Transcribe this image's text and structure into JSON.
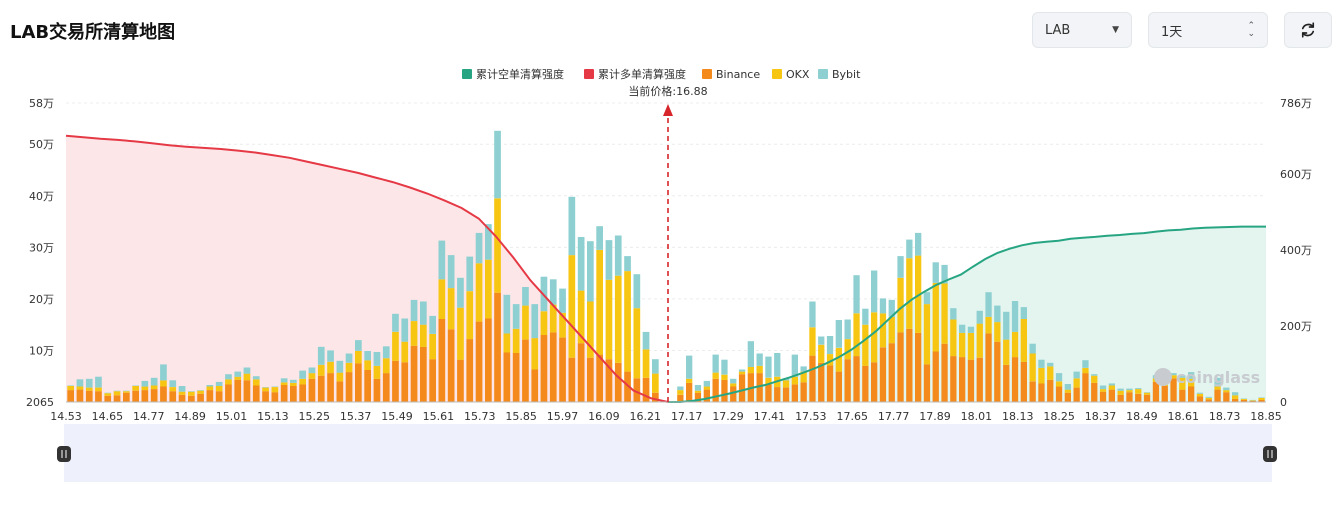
{
  "header": {
    "title": "LAB交易所清算地图",
    "coin_select": {
      "value": "LAB"
    },
    "period_select": {
      "value": "1天"
    },
    "refresh_icon": "refresh-icon"
  },
  "watermark": {
    "text": "coinglass"
  },
  "colors": {
    "short_line": "#27a583",
    "long_line": "#e53945",
    "short_fill": "#e3f5ee",
    "long_fill": "#fde6e8",
    "binance": "#f38a1b",
    "okx": "#f7c613",
    "bybit": "#8ed0d1",
    "current_price_line": "#d7262b"
  },
  "chart_data": {
    "type": "bar",
    "title": "",
    "legend": {
      "placement": "top-center",
      "items": [
        {
          "key": "short",
          "label": "累计空单清算强度",
          "color": "#27a583"
        },
        {
          "key": "long",
          "label": "累计多单清算强度",
          "color": "#e53945"
        },
        {
          "key": "binance",
          "label": "Binance",
          "color": "#f38a1b"
        },
        {
          "key": "okx",
          "label": "OKX",
          "color": "#f7c613"
        },
        {
          "key": "bybit",
          "label": "Bybit",
          "color": "#8ed0d1"
        }
      ]
    },
    "current_price": {
      "label": "当前价格:16.88",
      "value": 16.88
    },
    "x_tick_labels": [
      "14.53",
      "14.65",
      "14.77",
      "14.89",
      "15.01",
      "15.13",
      "15.25",
      "15.37",
      "15.49",
      "15.61",
      "15.73",
      "15.85",
      "15.97",
      "16.09",
      "16.21",
      "17.17",
      "17.29",
      "17.41",
      "17.53",
      "17.65",
      "17.77",
      "17.89",
      "18.01",
      "18.13",
      "18.25",
      "18.37",
      "18.49",
      "18.61",
      "18.73",
      "18.85"
    ],
    "y_left": {
      "ticks": [
        "2065",
        "10万",
        "20万",
        "30万",
        "40万",
        "50万",
        "58万"
      ],
      "range": [
        2065,
        580000
      ]
    },
    "y_right": {
      "ticks": [
        "0",
        "200万",
        "400万",
        "600万",
        "786万"
      ],
      "range": [
        0,
        7860000
      ]
    },
    "grid": true,
    "left_side": {
      "binance": [
        2.3,
        2.4,
        2.2,
        2.1,
        1.2,
        1.3,
        1.8,
        2.2,
        2.3,
        2.5,
        3.0,
        2.1,
        1.4,
        1.2,
        1.6,
        2.3,
        2.1,
        3.4,
        4.3,
        4.2,
        3.2,
        2.1,
        1.9,
        3.3,
        3.1,
        3.4,
        4.5,
        5.1,
        5.6,
        4.0,
        5.8,
        7.5,
        6.2,
        4.5,
        5.6,
        8.0,
        7.7,
        10.9,
        10.7,
        8.3,
        16.1,
        14.1,
        8.2,
        12.2,
        15.6,
        16.2,
        21.2,
        9.6,
        9.5,
        12.1,
        6.3,
        13.0,
        13.5,
        12.5,
        8.6,
        11.4,
        8.6,
        9.2,
        8.3,
        7.6,
        5.9,
        4.6,
        4.7,
        1.8
      ],
      "okx": [
        0.8,
        0.6,
        0.6,
        0.7,
        0.5,
        0.8,
        0.3,
        0.9,
        0.7,
        0.7,
        1.2,
        0.8,
        0.6,
        0.8,
        0.6,
        0.7,
        1.0,
        1.0,
        0.6,
        1.3,
        1.2,
        0.7,
        1.0,
        0.5,
        0.6,
        1.1,
        1.1,
        2.1,
        2.2,
        1.7,
        1.8,
        2.4,
        1.9,
        2.5,
        2.9,
        5.6,
        4.0,
        4.8,
        4.3,
        4.9,
        7.7,
        8.0,
        10.1,
        9.3,
        11.3,
        11.4,
        18.3,
        3.7,
        4.7,
        6.6,
        6.1,
        4.6,
        5.4,
        4.8,
        19.9,
        10.2,
        10.9,
        20.3,
        15.4,
        16.9,
        19.5,
        13.6,
        5.5,
        3.7
      ],
      "bybit": [
        0.1,
        1.4,
        1.7,
        2.1,
        0.1,
        0.1,
        0.1,
        0.1,
        1.1,
        1.5,
        3.1,
        1.3,
        1.1,
        0.1,
        0.1,
        0.3,
        0.8,
        1.0,
        1.0,
        1.2,
        0.6,
        0.1,
        0.1,
        0.8,
        0.6,
        1.6,
        1.1,
        3.5,
        2.2,
        2.3,
        1.8,
        2.1,
        1.8,
        2.7,
        2.3,
        3.5,
        4.5,
        4.1,
        4.5,
        3.5,
        7.5,
        6.4,
        5.8,
        6.7,
        5.9,
        6.9,
        13.1,
        7.5,
        4.8,
        3.6,
        6.6,
        6.7,
        4.9,
        4.7,
        11.3,
        10.4,
        11.7,
        4.6,
        7.7,
        7.8,
        2.9,
        6.6,
        3.4,
        2.8
      ],
      "cumulative_long": [
        7000000,
        6960000,
        6920000,
        6890000,
        6850000,
        6800000,
        6750000,
        6710000,
        6680000,
        6650000,
        6610000,
        6560000,
        6490000,
        6420000,
        6320000,
        6220000,
        6120000,
        6020000,
        5900000,
        5780000,
        5640000,
        5480000,
        5300000,
        5100000,
        4820000,
        4350000,
        3800000,
        3200000,
        2700000,
        2200000,
        1700000,
        1200000,
        700000,
        300000,
        100000,
        0
      ]
    },
    "right_side": {
      "binance": [
        1.4,
        3.7,
        1.8,
        2.4,
        4.5,
        4.3,
        3.0,
        5.4,
        5.6,
        5.6,
        3.4,
        2.9,
        2.8,
        3.4,
        3.8,
        9.0,
        7.6,
        7.1,
        5.9,
        8.3,
        8.9,
        7.0,
        7.7,
        10.6,
        11.4,
        13.5,
        14.2,
        13.4,
        7.3,
        9.8,
        11.3,
        8.9,
        8.7,
        8.2,
        8.6,
        13.3,
        11.7,
        7.2,
        8.7,
        7.8,
        4.0,
        3.6,
        4.3,
        3.0,
        1.8,
        2.8,
        5.6,
        3.7,
        2.0,
        2.4,
        1.4,
        1.9,
        1.6,
        1.4,
        3.9,
        3.1,
        4.6,
        2.4,
        3.0,
        1.1,
        0.5,
        2.4,
        1.9,
        0.6,
        0.4,
        0.2,
        0.4
      ],
      "okx": [
        0.9,
        0.8,
        0.4,
        0.6,
        1.2,
        1.0,
        0.6,
        0.5,
        1.2,
        1.4,
        1.3,
        2.0,
        1.4,
        1.5,
        2.1,
        5.5,
        3.5,
        2.2,
        4.6,
        3.9,
        8.3,
        8.0,
        9.7,
        6.6,
        5.1,
        10.6,
        13.7,
        15.0,
        11.7,
        13.3,
        11.7,
        7.1,
        4.7,
        5.2,
        6.6,
        3.2,
        3.8,
        4.9,
        4.9,
        8.3,
        5.4,
        3.0,
        2.6,
        1.0,
        0.6,
        1.8,
        1.0,
        1.4,
        0.5,
        0.8,
        0.8,
        0.4,
        0.9,
        0.4,
        0.7,
        1.3,
        0.6,
        2.3,
        1.5,
        0.5,
        0.3,
        0.6,
        0.4,
        0.7,
        0.2,
        0.1,
        0.4
      ],
      "bybit": [
        0.7,
        4.5,
        1.1,
        1.1,
        3.5,
        2.9,
        0.9,
        0.4,
        5.0,
        2.4,
        4.1,
        4.6,
        0.4,
        4.3,
        1.0,
        5.0,
        1.6,
        3.5,
        5.4,
        3.8,
        7.4,
        3.1,
        8.1,
        2.9,
        3.3,
        4.2,
        3.6,
        4.4,
        2.3,
        4.0,
        3.6,
        2.2,
        1.6,
        1.2,
        2.5,
        4.8,
        3.2,
        5.4,
        6.0,
        2.3,
        1.9,
        1.6,
        0.7,
        1.6,
        1.1,
        1.3,
        1.5,
        0.3,
        0.7,
        0.4,
        0.4,
        0.3,
        0.2,
        0.1,
        0.6,
        0.4,
        0.4,
        0.5,
        1.3,
        0.2,
        0.2,
        1.7,
        0.5,
        0.6,
        0.1,
        0.1,
        0.1
      ],
      "cumulative_short": [
        0,
        0,
        30000,
        80000,
        150000,
        220000,
        300000,
        380000,
        450000,
        550000,
        650000,
        760000,
        880000,
        1020000,
        1180000,
        1370000,
        1600000,
        1850000,
        2150000,
        2450000,
        2700000,
        2900000,
        3080000,
        3220000,
        3350000,
        3560000,
        3760000,
        3920000,
        4030000,
        4120000,
        4180000,
        4210000,
        4240000,
        4290000,
        4320000,
        4340000,
        4370000,
        4390000,
        4420000,
        4440000,
        4480000,
        4510000,
        4530000,
        4560000,
        4580000,
        4590000,
        4600000,
        4610000,
        4610000,
        4610000
      ]
    }
  }
}
